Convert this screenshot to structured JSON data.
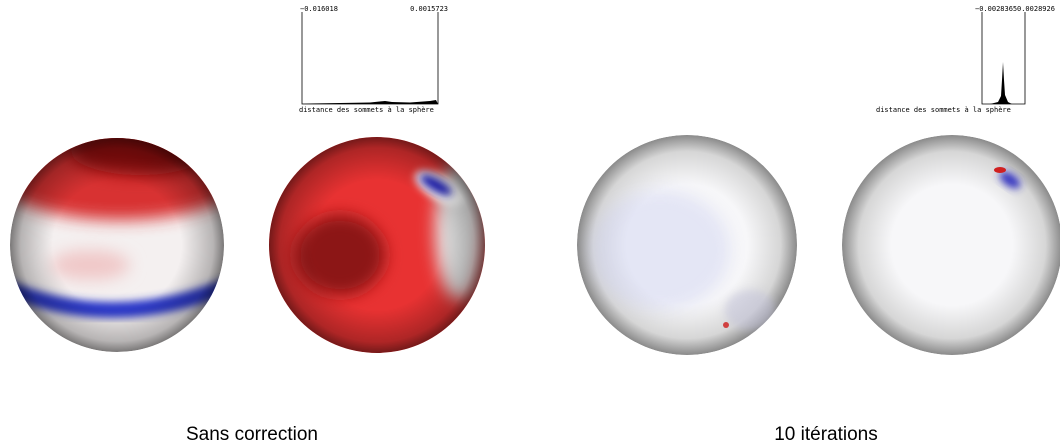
{
  "panels": [
    {
      "histogram": {
        "min_label": "−0.016018",
        "max_label": "0.0015723",
        "axis_label": "distance des sommets à la sphère"
      },
      "caption": "Sans correction"
    },
    {
      "histogram": {
        "min_label": "−0.0028365",
        "max_label": "0.0028926",
        "axis_label": "distance des sommets à la sphère"
      },
      "caption": "10 itérations"
    }
  ]
}
